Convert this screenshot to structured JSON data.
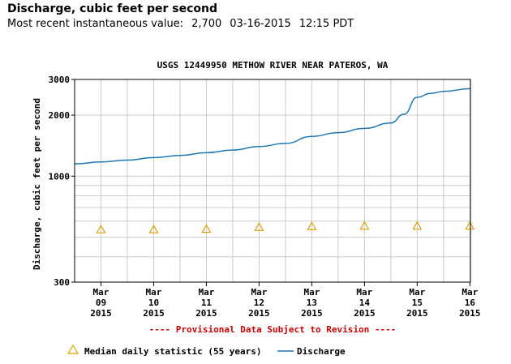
{
  "header": {
    "title": "Discharge, cubic feet per second",
    "recent_label": "Most recent instantaneous value:",
    "recent_value": "2,700",
    "recent_date": "03-16-2015",
    "recent_time": "12:15 PDT"
  },
  "chart_data": {
    "type": "line",
    "title": "USGS 12449950 METHOW RIVER NEAR PATEROS, WA",
    "ylabel": "Discharge, cubic feet per second",
    "xlabel": "",
    "y_scale": "log",
    "ylim": [
      300,
      3000
    ],
    "y_ticks": [
      300,
      1000,
      2000,
      3000
    ],
    "y_minor_gridlines": [
      400,
      500,
      600,
      700,
      800,
      900,
      1000,
      2000
    ],
    "xlim": [
      "2015-03-09 00:00",
      "2015-03-16 12:15"
    ],
    "x_ticks": [
      {
        "date": "2015-03-09",
        "month": "Mar",
        "day": "09",
        "year": "2015"
      },
      {
        "date": "2015-03-10",
        "month": "Mar",
        "day": "10",
        "year": "2015"
      },
      {
        "date": "2015-03-11",
        "month": "Mar",
        "day": "11",
        "year": "2015"
      },
      {
        "date": "2015-03-12",
        "month": "Mar",
        "day": "12",
        "year": "2015"
      },
      {
        "date": "2015-03-13",
        "month": "Mar",
        "day": "13",
        "year": "2015"
      },
      {
        "date": "2015-03-14",
        "month": "Mar",
        "day": "14",
        "year": "2015"
      },
      {
        "date": "2015-03-15",
        "month": "Mar",
        "day": "15",
        "year": "2015"
      },
      {
        "date": "2015-03-16",
        "month": "Mar",
        "day": "16",
        "year": "2015"
      }
    ],
    "grid": true,
    "annotation": "---- Provisional Data Subject to Revision ----",
    "series": [
      {
        "name": "Discharge",
        "color": "#1f77b4",
        "points": [
          [
            "2015-03-09 00:00",
            1150
          ],
          [
            "2015-03-09 12:00",
            1175
          ],
          [
            "2015-03-10 00:00",
            1200
          ],
          [
            "2015-03-10 12:00",
            1235
          ],
          [
            "2015-03-11 00:00",
            1265
          ],
          [
            "2015-03-11 12:00",
            1305
          ],
          [
            "2015-03-12 00:00",
            1345
          ],
          [
            "2015-03-12 12:00",
            1400
          ],
          [
            "2015-03-13 00:00",
            1450
          ],
          [
            "2015-03-13 12:00",
            1570
          ],
          [
            "2015-03-14 00:00",
            1640
          ],
          [
            "2015-03-14 12:00",
            1720
          ],
          [
            "2015-03-15 00:00",
            1830
          ],
          [
            "2015-03-15 06:00",
            2020
          ],
          [
            "2015-03-15 12:00",
            2450
          ],
          [
            "2015-03-15 18:00",
            2560
          ],
          [
            "2015-03-16 00:00",
            2620
          ],
          [
            "2015-03-16 12:15",
            2700
          ]
        ]
      },
      {
        "name": "Median daily statistic (55 years)",
        "color": "#e0a000",
        "marker": "triangle",
        "points": [
          [
            "2015-03-09",
            545
          ],
          [
            "2015-03-10",
            545
          ],
          [
            "2015-03-11",
            548
          ],
          [
            "2015-03-12",
            560
          ],
          [
            "2015-03-13",
            565
          ],
          [
            "2015-03-14",
            568
          ],
          [
            "2015-03-15",
            568
          ],
          [
            "2015-03-16",
            568
          ]
        ]
      }
    ],
    "legend": {
      "placement": "bottom",
      "median_label": "Median daily statistic (55 years)",
      "discharge_label": "Discharge"
    },
    "colors": {
      "plot_border": "#000000",
      "grid": "#cccccc",
      "annotation": "#cc0000"
    }
  }
}
